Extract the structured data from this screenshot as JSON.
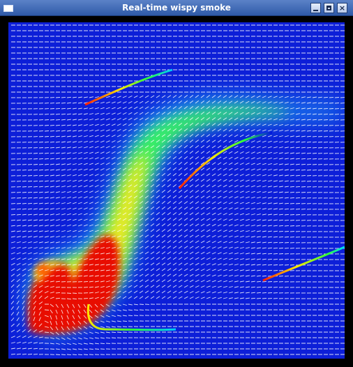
{
  "window": {
    "title": "Real-time wispy smoke",
    "controls": {
      "minimize": "minimize",
      "maximize": "maximize",
      "close": "×"
    }
  },
  "simulation": {
    "background_color": "#0d1fd8",
    "vector_color": "#ffffff",
    "palette": [
      "#0000c8",
      "#00c8ff",
      "#1eff3c",
      "#ffe600",
      "#ff7000",
      "#d60000"
    ]
  }
}
